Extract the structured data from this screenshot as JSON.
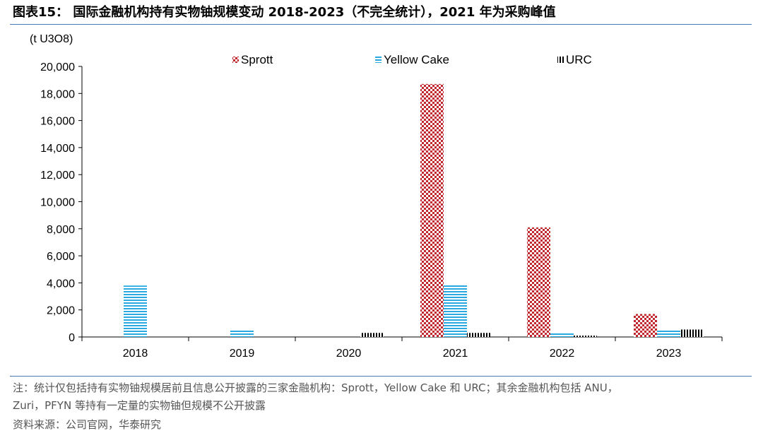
{
  "title": "图表15：  国际金融机构持有实物铀规模变动 2018-2023（不完全统计），2021 年为采购峰值",
  "footnotes": {
    "line1": "注：统计仅包括持有实物铀规模居前且信息公开披露的三家金融机构：Sprott，Yellow Cake 和 URC；其余金融机构包括 ANU，",
    "line2": "Zuri，PFYN 等持有一定量的实物铀但规模不公开披露",
    "source": "资料来源：公司官网，华泰研究"
  },
  "colors": {
    "sprott": "#c0282d",
    "yellow_cake": "#29a9e1",
    "urc": "#000000",
    "rule": "#4a7ab5"
  },
  "chart_data": {
    "type": "bar",
    "unit_label": "(t U3O8)",
    "categories": [
      "2018",
      "2019",
      "2020",
      "2021",
      "2022",
      "2023"
    ],
    "series": [
      {
        "name": "Sprott",
        "pattern": "checker",
        "values": [
          0,
          0,
          0,
          18700,
          8100,
          1700
        ]
      },
      {
        "name": "Yellow Cake",
        "pattern": "hstripe",
        "values": [
          3800,
          550,
          0,
          3850,
          300,
          500
        ]
      },
      {
        "name": "URC",
        "pattern": "vstripe",
        "values": [
          0,
          0,
          300,
          300,
          100,
          550
        ]
      }
    ],
    "ylim": [
      0,
      20000
    ],
    "yticks": [
      0,
      2000,
      4000,
      6000,
      8000,
      10000,
      12000,
      14000,
      16000,
      18000,
      20000
    ],
    "ytick_labels": [
      "0",
      "2,000",
      "4,000",
      "6,000",
      "8,000",
      "10,000",
      "12,000",
      "14,000",
      "16,000",
      "18,000",
      "20,000"
    ],
    "legend_position": "top",
    "grid": false
  }
}
